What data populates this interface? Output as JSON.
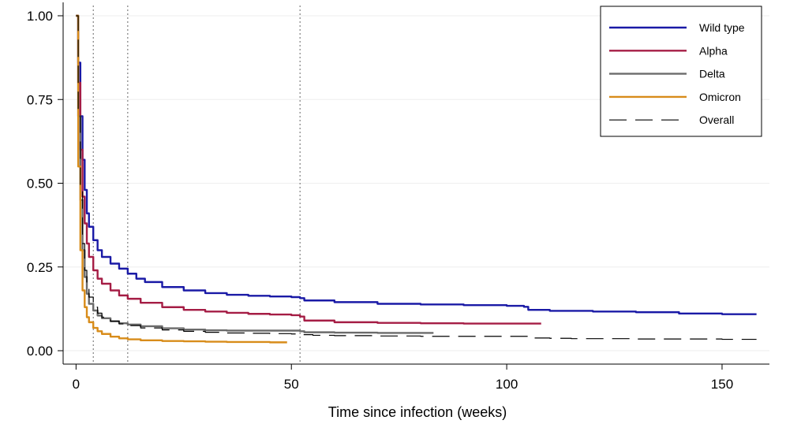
{
  "chart_data": {
    "type": "line",
    "title": "",
    "xlabel": "Time since infection (weeks)",
    "ylabel": "",
    "xlim": [
      -3,
      161
    ],
    "ylim": [
      -0.04,
      1.04
    ],
    "x_ticks": [
      {
        "value": 0,
        "label": "0"
      },
      {
        "value": 50,
        "label": "50"
      },
      {
        "value": 100,
        "label": "100"
      },
      {
        "value": 150,
        "label": "150"
      }
    ],
    "y_ticks": [
      {
        "value": 0,
        "label": "0.00"
      },
      {
        "value": 0.25,
        "label": "0.25"
      },
      {
        "value": 0.5,
        "label": "0.50"
      },
      {
        "value": 0.75,
        "label": "0.75"
      },
      {
        "value": 1,
        "label": "1.00"
      }
    ],
    "grid": "horizontal",
    "vertical_reference_lines": [
      4,
      12,
      52
    ],
    "legend_position": "top-right",
    "series": [
      {
        "name": "Wild type",
        "color": "#1a1aa6",
        "dash": "solid",
        "x": [
          0,
          0.5,
          1,
          1.5,
          2,
          2.5,
          3,
          4,
          5,
          6,
          8,
          10,
          12,
          14,
          16,
          20,
          25,
          30,
          35,
          40,
          45,
          50,
          52,
          53,
          60,
          70,
          80,
          90,
          100,
          104,
          105,
          110,
          120,
          130,
          140,
          150,
          158
        ],
        "y": [
          1.0,
          0.86,
          0.7,
          0.57,
          0.48,
          0.41,
          0.37,
          0.33,
          0.3,
          0.28,
          0.26,
          0.245,
          0.23,
          0.215,
          0.205,
          0.19,
          0.18,
          0.172,
          0.167,
          0.164,
          0.162,
          0.16,
          0.157,
          0.15,
          0.145,
          0.14,
          0.138,
          0.136,
          0.134,
          0.131,
          0.122,
          0.119,
          0.117,
          0.115,
          0.111,
          0.109,
          0.109
        ]
      },
      {
        "name": "Alpha",
        "color": "#a51d45",
        "dash": "solid",
        "x": [
          0,
          0.5,
          1,
          1.5,
          2,
          2.5,
          3,
          4,
          5,
          6,
          8,
          10,
          12,
          15,
          20,
          25,
          30,
          35,
          40,
          45,
          50,
          52,
          53,
          60,
          70,
          80,
          90,
          100,
          108
        ],
        "y": [
          1.0,
          0.8,
          0.6,
          0.46,
          0.38,
          0.32,
          0.28,
          0.24,
          0.215,
          0.2,
          0.18,
          0.165,
          0.155,
          0.143,
          0.13,
          0.122,
          0.117,
          0.113,
          0.11,
          0.108,
          0.106,
          0.102,
          0.09,
          0.085,
          0.083,
          0.082,
          0.081,
          0.081,
          0.081
        ]
      },
      {
        "name": "Delta",
        "color": "#6b6b6b",
        "dash": "solid",
        "x": [
          0,
          0.5,
          1,
          1.5,
          2,
          2.5,
          3,
          4,
          5,
          6,
          8,
          10,
          12,
          15,
          20,
          25,
          30,
          35,
          40,
          45,
          50,
          52,
          53,
          60,
          70,
          83
        ],
        "y": [
          1.0,
          0.7,
          0.45,
          0.3,
          0.22,
          0.17,
          0.14,
          0.12,
          0.105,
          0.097,
          0.088,
          0.082,
          0.078,
          0.073,
          0.067,
          0.063,
          0.061,
          0.06,
          0.06,
          0.06,
          0.06,
          0.058,
          0.055,
          0.054,
          0.053,
          0.053
        ]
      },
      {
        "name": "Omicron",
        "color": "#d88c1a",
        "dash": "solid",
        "x": [
          0,
          0.5,
          1,
          1.5,
          2,
          2.5,
          3,
          4,
          5,
          6,
          8,
          10,
          12,
          15,
          20,
          25,
          30,
          35,
          40,
          45,
          49
        ],
        "y": [
          1.0,
          0.55,
          0.3,
          0.18,
          0.13,
          0.1,
          0.085,
          0.068,
          0.058,
          0.05,
          0.042,
          0.037,
          0.034,
          0.031,
          0.029,
          0.028,
          0.027,
          0.026,
          0.026,
          0.025,
          0.025
        ]
      },
      {
        "name": "Overall",
        "color": "#000000",
        "dash": "dashed",
        "x": [
          0,
          0.5,
          1,
          1.5,
          2,
          2.5,
          3,
          4,
          5,
          6,
          8,
          10,
          12,
          15,
          20,
          25,
          30,
          35,
          40,
          45,
          50,
          52,
          55,
          60,
          70,
          80,
          90,
          100,
          105,
          110,
          115,
          120,
          130,
          140,
          150,
          158
        ],
        "y": [
          1.0,
          0.72,
          0.48,
          0.32,
          0.24,
          0.19,
          0.16,
          0.13,
          0.112,
          0.1,
          0.088,
          0.08,
          0.075,
          0.068,
          0.062,
          0.058,
          0.055,
          0.053,
          0.052,
          0.051,
          0.05,
          0.048,
          0.046,
          0.045,
          0.044,
          0.043,
          0.043,
          0.043,
          0.038,
          0.037,
          0.036,
          0.036,
          0.035,
          0.035,
          0.034,
          0.034
        ]
      }
    ]
  }
}
